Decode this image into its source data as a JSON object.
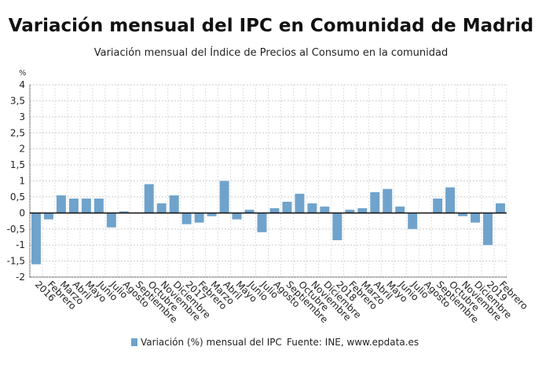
{
  "chart_data": {
    "type": "bar",
    "title": "Variación mensual del IPC en Comunidad de Madrid",
    "subtitle": "Variación mensual del Índice de Precios al Consumo en la comunidad",
    "ylabel": "%",
    "ylim": [
      -2,
      4
    ],
    "yticks": [
      "-2",
      "-1,5",
      "-1",
      "-0,5",
      "0",
      "0,5",
      "1",
      "1,5",
      "2",
      "2,5",
      "3",
      "3,5",
      "4"
    ],
    "grid": true,
    "categories": [
      "2016",
      "Febrero",
      "Marzo",
      "Abril",
      "Mayo",
      "Junio",
      "Julio",
      "Agosto",
      "Septiembre",
      "Octubre",
      "Noviembre",
      "Diciembre",
      "2017",
      "Febrero",
      "Marzo",
      "Abril",
      "Mayo",
      "Junio",
      "Julio",
      "Agosto",
      "Septiembre",
      "Octubre",
      "Noviembre",
      "Diciembre",
      "2018",
      "Febrero",
      "Marzo",
      "Abril",
      "Mayo",
      "Junio",
      "Julio",
      "Agosto",
      "Septiembre",
      "Octubre",
      "Noviembre",
      "Diciembre",
      "2019",
      "Febrero"
    ],
    "series": [
      {
        "name": "Variación (%) mensual del IPC",
        "color": "#6fa3cc",
        "values": [
          -1.6,
          -0.2,
          0.55,
          0.45,
          0.45,
          0.45,
          -0.45,
          0.05,
          0.0,
          0.9,
          0.3,
          0.55,
          -0.35,
          -0.3,
          -0.1,
          1.0,
          -0.2,
          0.1,
          -0.6,
          0.15,
          0.35,
          0.6,
          0.3,
          0.2,
          -0.85,
          0.1,
          0.15,
          0.65,
          0.75,
          0.2,
          -0.5,
          0.0,
          0.45,
          0.8,
          -0.1,
          -0.3,
          -1.0,
          0.3
        ]
      }
    ],
    "legend_position": "bottom",
    "source": "Fuente: INE, www.epdata.es"
  }
}
